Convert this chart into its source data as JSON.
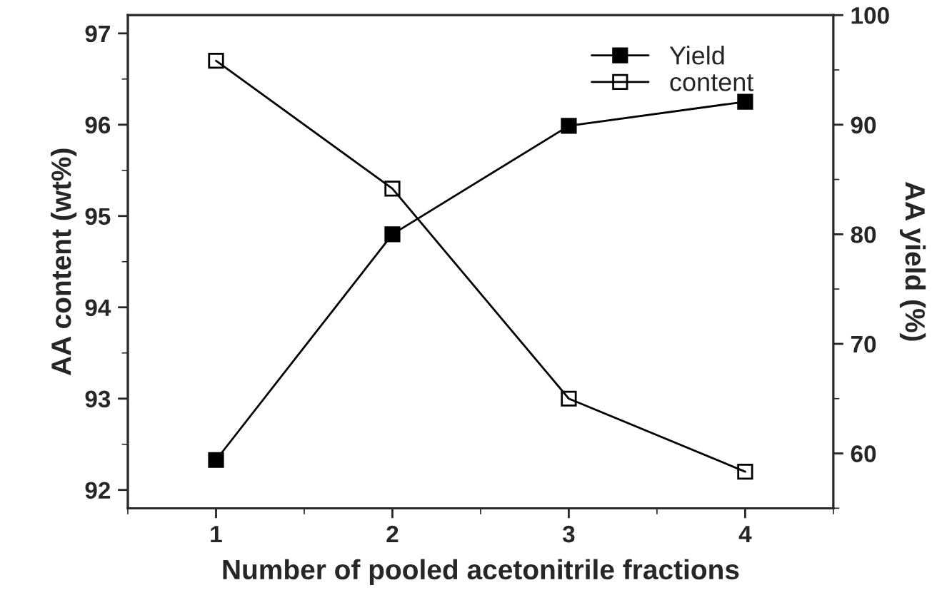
{
  "chart_data": {
    "type": "line",
    "xlabel": "Number of pooled acetonitrile fractions",
    "ylabel": "AA content (wt%)",
    "y2label": "AA yield (%)",
    "x": [
      1,
      2,
      3,
      4
    ],
    "xlim": [
      0.5,
      4.5
    ],
    "xticks": [
      1,
      2,
      3,
      4
    ],
    "ylim": [
      91.8,
      97.2
    ],
    "yticks": [
      92,
      93,
      94,
      95,
      96,
      97
    ],
    "y2lim": [
      55,
      100
    ],
    "y2ticks": [
      60,
      70,
      80,
      90,
      100
    ],
    "marker": "square",
    "line_style": "solid",
    "grid": false,
    "legend": "top right",
    "series": [
      {
        "name": "Yield",
        "color": "#000000",
        "axis": "y2",
        "values": [
          59.4,
          80.0,
          89.9,
          92.1
        ]
      },
      {
        "name": "content",
        "color": "#000000",
        "axis": "y",
        "values": [
          96.7,
          95.3,
          93.0,
          92.2
        ]
      }
    ]
  }
}
